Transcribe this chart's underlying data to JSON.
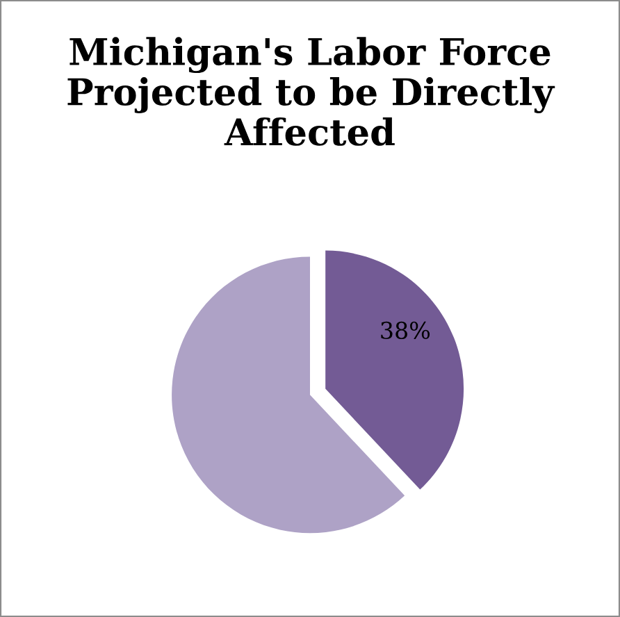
{
  "chart_data": {
    "type": "pie",
    "title": "Michigan's Labor Force Projected to be Directly Affected",
    "categories": [
      null,
      null
    ],
    "values": [
      38,
      62
    ],
    "value_labels": [
      "38%",
      null
    ],
    "colors": [
      "#735b95",
      "#aea2c6"
    ]
  }
}
